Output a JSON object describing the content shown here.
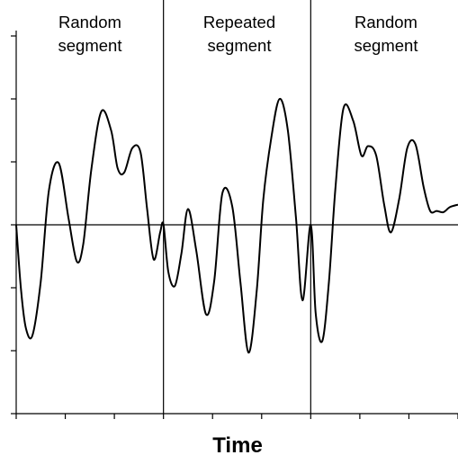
{
  "chart_data": {
    "type": "line",
    "title": "",
    "xlabel": "Time",
    "ylabel": "",
    "xlim": [
      0,
      27
    ],
    "ylim": [
      -3,
      3
    ],
    "x_ticks": [
      0,
      3,
      6,
      9,
      12,
      15,
      18,
      21,
      24,
      27
    ],
    "y_ticks": [
      -3,
      -2,
      -1,
      0,
      1,
      2,
      3
    ],
    "grid": false,
    "segments": [
      {
        "label_line1": "Random",
        "label_line2": "segment",
        "x_start": 0,
        "x_end": 9
      },
      {
        "label_line1": "Repeated",
        "label_line2": "segment",
        "x_start": 9,
        "x_end": 18
      },
      {
        "label_line1": "Random",
        "label_line2": "segment",
        "x_start": 18,
        "x_end": 27
      }
    ],
    "segment_boundaries": [
      9,
      18
    ],
    "series": [
      {
        "color": "#000000",
        "x": [
          0,
          0.3,
          0.6,
          1.0,
          1.5,
          2.0,
          2.6,
          3.2,
          3.7,
          4.1,
          4.6,
          5.2,
          5.8,
          6.2,
          6.6,
          7.1,
          7.6,
          8.0,
          8.4,
          8.8,
          9.0,
          9.3,
          9.7,
          10.1,
          10.5,
          11.0,
          11.6,
          12.1,
          12.6,
          13.2,
          13.7,
          14.2,
          14.7,
          15.1,
          15.6,
          16.1,
          16.6,
          17.1,
          17.5,
          18.0,
          18.3,
          18.7,
          19.1,
          19.5,
          20.0,
          20.6,
          21.1,
          21.5,
          22.0,
          22.5,
          22.9,
          23.4,
          23.9,
          24.4,
          24.9,
          25.3,
          25.7,
          26.1,
          26.5,
          27.0
        ],
        "values": [
          0,
          -1.05,
          -1.65,
          -1.75,
          -0.9,
          0.55,
          0.98,
          0.1,
          -0.58,
          -0.3,
          0.9,
          1.8,
          1.5,
          0.9,
          0.83,
          1.22,
          1.15,
          0.25,
          -0.55,
          -0.12,
          0,
          -0.75,
          -0.97,
          -0.45,
          0.25,
          -0.4,
          -1.42,
          -0.9,
          0.5,
          0.3,
          -0.9,
          -2.03,
          -1.05,
          0.4,
          1.4,
          2.0,
          1.5,
          0.1,
          -1.2,
          0,
          -1.4,
          -1.85,
          -0.95,
          0.55,
          1.85,
          1.65,
          1.1,
          1.25,
          1.1,
          0.3,
          -0.12,
          0.4,
          1.22,
          1.28,
          0.6,
          0.22,
          0.22,
          0.2,
          0.28,
          0.32
        ]
      }
    ]
  }
}
